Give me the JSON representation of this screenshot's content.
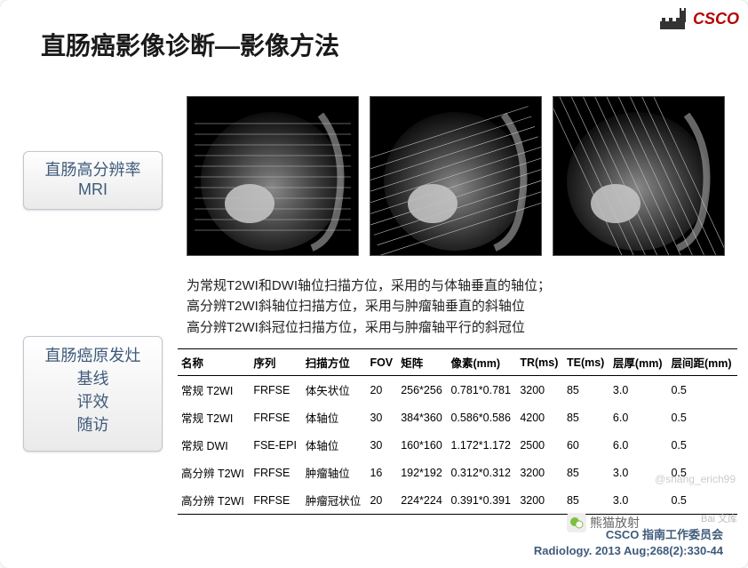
{
  "title": "直肠癌影像诊断—影像方法",
  "logo_text": "CSCO",
  "sidebar1": {
    "line1": "直肠高分辨率",
    "line2": "MRI"
  },
  "sidebar2": {
    "line1": "直肠癌原发灶",
    "line2": "基线",
    "line3": "评效",
    "line4": "随访"
  },
  "desc": {
    "l1": "为常规T2WI和DWI轴位扫描方位，采用的与体轴垂直的轴位；",
    "l2": "高分辨T2WI斜轴位扫描方位，采用与肿瘤轴垂直的斜轴位",
    "l3": "高分辨T2WI斜冠位扫描方位，采用与肿瘤轴平行的斜冠位"
  },
  "table": {
    "headers": [
      "名称",
      "序列",
      "扫描方位",
      "FOV",
      "矩阵",
      "像素(mm)",
      "TR(ms)",
      "TE(ms)",
      "层厚(mm)",
      "层间距(mm)"
    ],
    "rows": [
      [
        "常规 T2WI",
        "FRFSE",
        "体矢状位",
        "20",
        "256*256",
        "0.781*0.781",
        "3200",
        "85",
        "3.0",
        "0.5"
      ],
      [
        "常规 T2WI",
        "FRFSE",
        "体轴位",
        "30",
        "384*360",
        "0.586*0.586",
        "4200",
        "85",
        "6.0",
        "0.5"
      ],
      [
        "常规 DWI",
        "FSE-EPI",
        "体轴位",
        "30",
        "160*160",
        "1.172*1.172",
        "2500",
        "60",
        "6.0",
        "0.5"
      ],
      [
        "高分辨 T2WI",
        "FRFSE",
        "肿瘤轴位",
        "16",
        "192*192",
        "0.312*0.312",
        "3200",
        "85",
        "3.0",
        "0.5"
      ],
      [
        "高分辨 T2WI",
        "FRFSE",
        "肿瘤冠状位",
        "20",
        "224*224",
        "0.391*0.391",
        "3200",
        "85",
        "3.0",
        "0.5"
      ]
    ]
  },
  "watermark": "@shang_erich99",
  "baidu": "Bai 文库",
  "wechat_label": "熊猫放射",
  "footer": {
    "l1": "CSCO 指南工作委员会",
    "l2": "Radiology. 2013 Aug;268(2):330-44"
  },
  "mri_style": {
    "bg": "#000000",
    "tissue_dark": "#1a1a1a",
    "tissue_mid": "#4a4a4a",
    "tissue_light": "#8a8a8a",
    "tissue_bright": "#c8c8c8",
    "line_color": "#c0c0c0",
    "line_width": 0.6
  }
}
